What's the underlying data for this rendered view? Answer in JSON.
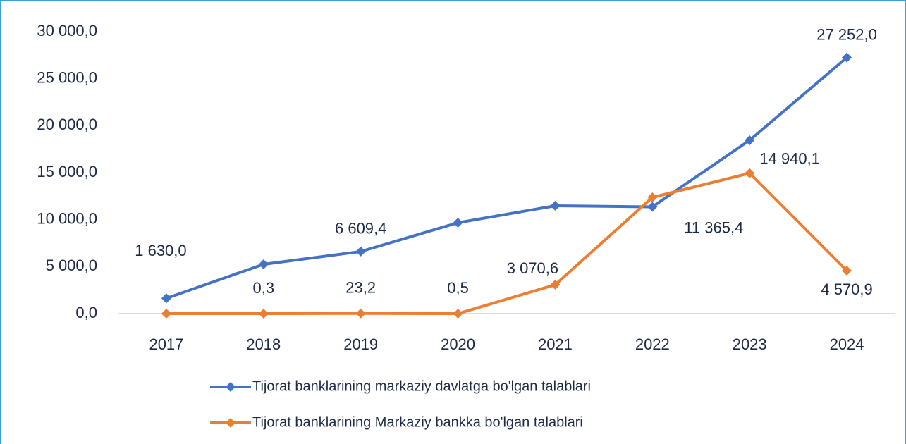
{
  "chart_data": {
    "type": "line",
    "categories": [
      "2017",
      "2018",
      "2019",
      "2020",
      "2021",
      "2022",
      "2023",
      "2024"
    ],
    "series": [
      {
        "name": "Tijorat banklarining markaziy davlatga bo'lgan talablari",
        "color": "#4472c4",
        "values": [
          1630.0,
          5250,
          6609.4,
          9675,
          11475,
          11365.4,
          18450,
          27252.0
        ],
        "value_labels": [
          "1 630,0",
          null,
          "6 609,4",
          null,
          null,
          "11 365,4",
          null,
          "27 252,0"
        ]
      },
      {
        "name": "Tijorat banklarining Markaziy bankka bo'lgan talablari",
        "color": "#ed7d31",
        "values": [
          0,
          0.3,
          23.2,
          0.5,
          3070.6,
          12375,
          14940.1,
          4570.9
        ],
        "value_labels": [
          null,
          "0,3",
          "23,2",
          "0,5",
          "3 070,6",
          null,
          "14 940,1",
          "4 570,9"
        ]
      }
    ],
    "ylim": [
      0,
      30000
    ],
    "yticks": [
      {
        "value": 0,
        "label": "0,0"
      },
      {
        "value": 5000,
        "label": "5 000,0"
      },
      {
        "value": 10000,
        "label": "10 000,0"
      },
      {
        "value": 15000,
        "label": "15 000,0"
      },
      {
        "value": 20000,
        "label": "20 000,0"
      },
      {
        "value": 25000,
        "label": "25 000,0"
      },
      {
        "value": 30000,
        "label": "30 000,0"
      }
    ],
    "grid": false,
    "legend": "bottom"
  }
}
